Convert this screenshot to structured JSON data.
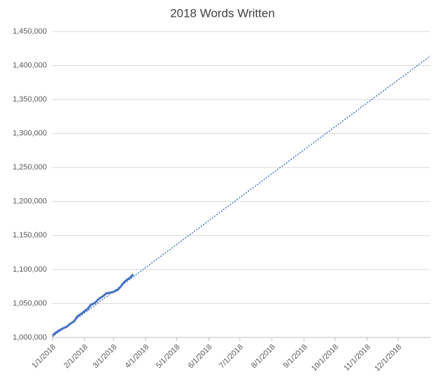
{
  "chart_data": {
    "type": "line",
    "title": "2018 Words Written",
    "series": [
      {
        "color": "#4472c4",
        "style": "solid",
        "x": [
          "2018-01-01",
          "2018-01-04",
          "2018-01-08",
          "2018-01-12",
          "2018-01-15",
          "2018-01-18",
          "2018-01-22",
          "2018-01-25",
          "2018-01-29",
          "2018-02-01",
          "2018-02-04",
          "2018-02-07",
          "2018-02-11",
          "2018-02-15",
          "2018-02-19",
          "2018-02-22",
          "2018-02-26",
          "2018-03-01",
          "2018-03-05",
          "2018-03-08",
          "2018-03-11",
          "2018-03-14",
          "2018-03-17",
          "2018-03-20"
        ],
        "values": [
          1003000,
          1007000,
          1011000,
          1014000,
          1016000,
          1020000,
          1024000,
          1031000,
          1035000,
          1039000,
          1042000,
          1048000,
          1051000,
          1057000,
          1061000,
          1065000,
          1066000,
          1067000,
          1070000,
          1075000,
          1081000,
          1085000,
          1088000,
          1093000
        ]
      },
      {
        "color": "#4472c4",
        "style": "dotted",
        "x": [
          "2018-01-01",
          "2019-01-01"
        ],
        "values": [
          1001000,
          1414000
        ]
      }
    ],
    "xlim": [
      "2018-01-01",
      "2019-01-01"
    ],
    "xticks": [
      {
        "value": "2018-01-01",
        "label": "1/1/2018"
      },
      {
        "value": "2018-02-01",
        "label": "2/1/2018"
      },
      {
        "value": "2018-03-01",
        "label": "3/1/2018"
      },
      {
        "value": "2018-04-01",
        "label": "4/1/2018"
      },
      {
        "value": "2018-05-01",
        "label": "5/1/2018"
      },
      {
        "value": "2018-06-01",
        "label": "6/1/2018"
      },
      {
        "value": "2018-07-01",
        "label": "7/1/2018"
      },
      {
        "value": "2018-08-01",
        "label": "8/1/2018"
      },
      {
        "value": "2018-09-01",
        "label": "9/1/2018"
      },
      {
        "value": "2018-10-01",
        "label": "10/1/2018"
      },
      {
        "value": "2018-11-01",
        "label": "11/1/2018"
      },
      {
        "value": "2018-12-01",
        "label": "12/1/2018"
      }
    ],
    "ylim": [
      1000000,
      1450000
    ],
    "yticks": [
      {
        "value": 1000000,
        "label": "1,000,000"
      },
      {
        "value": 1050000,
        "label": "1,050,000"
      },
      {
        "value": 1100000,
        "label": "1,100,000"
      },
      {
        "value": 1150000,
        "label": "1,150,000"
      },
      {
        "value": 1200000,
        "label": "1,200,000"
      },
      {
        "value": 1250000,
        "label": "1,250,000"
      },
      {
        "value": 1300000,
        "label": "1,300,000"
      },
      {
        "value": 1350000,
        "label": "1,350,000"
      },
      {
        "value": 1400000,
        "label": "1,400,000"
      },
      {
        "value": 1450000,
        "label": "1,450,000"
      }
    ],
    "grid": true
  }
}
